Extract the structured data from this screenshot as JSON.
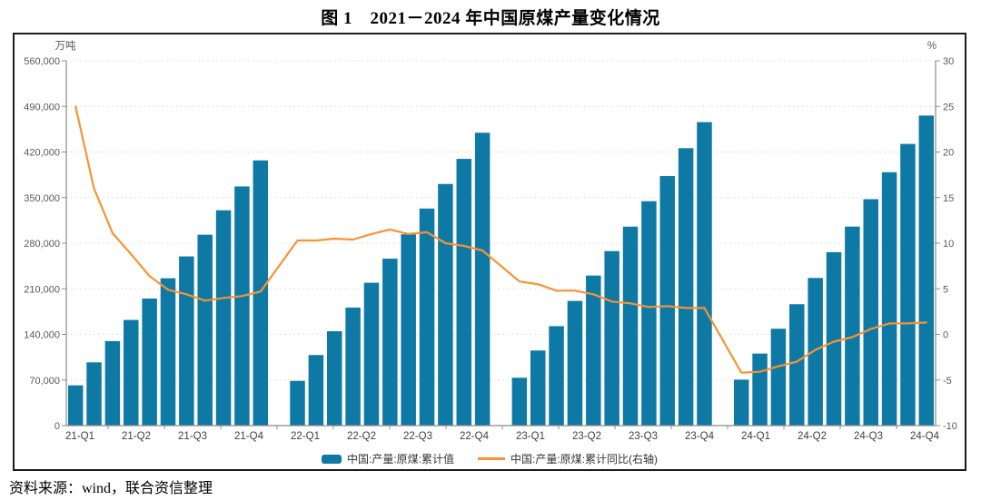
{
  "page": {
    "title": "图 1　2021－2024 年中国原煤产量变化情况",
    "source_note": "资料来源：wind，联合资信整理"
  },
  "legend": {
    "bar_label": "中国:产量:原煤:累计值",
    "line_label": "中国:产量:原煤:累计同比(右轴)"
  },
  "colors": {
    "bar": "#0f79a5",
    "line": "#f79333",
    "grid": "#e0e0e0",
    "axis": "#8c8c8c",
    "tick_text": "#595959",
    "x_label_text": "#404040"
  },
  "chart_data": {
    "type": "bar",
    "combo": "bar+line",
    "title": "图 1　2021－2024 年中国原煤产量变化情况",
    "grid": true,
    "legend_position": "bottom",
    "left_axis": {
      "label": "万吨",
      "min": 0,
      "max": 560000,
      "tick_step": 70000
    },
    "right_axis": {
      "label": "%",
      "min": -10,
      "max": 30,
      "tick_step": 5
    },
    "x_tick_labels": [
      "21-Q1",
      "21-Q2",
      "21-Q3",
      "21-Q4",
      "22-Q1",
      "22-Q2",
      "22-Q3",
      "22-Q4",
      "23-Q1",
      "23-Q2",
      "23-Q3",
      "23-Q4",
      "24-Q1",
      "24-Q2",
      "24-Q3",
      "24-Q4"
    ],
    "categories": [
      "2021-02",
      "2021-03",
      "2021-04",
      "2021-05",
      "2021-06",
      "2021-07",
      "2021-08",
      "2021-09",
      "2021-10",
      "2021-11",
      "2021-12",
      "2022-01",
      "2022-02",
      "2022-03",
      "2022-04",
      "2022-05",
      "2022-06",
      "2022-07",
      "2022-08",
      "2022-09",
      "2022-10",
      "2022-11",
      "2022-12",
      "2023-01",
      "2023-02",
      "2023-03",
      "2023-04",
      "2023-05",
      "2023-06",
      "2023-07",
      "2023-08",
      "2023-09",
      "2023-10",
      "2023-11",
      "2023-12",
      "2024-01",
      "2024-02",
      "2024-03",
      "2024-04",
      "2024-05",
      "2024-06",
      "2024-07",
      "2024-08",
      "2024-09",
      "2024-10",
      "2024-11",
      "2024-12"
    ],
    "series": [
      {
        "name": "中国:产量:原煤:累计值",
        "type": "bar",
        "axis": "left",
        "unit": "万吨",
        "values": [
          61760,
          97056,
          129700,
          162184,
          195000,
          226180,
          259700,
          293000,
          330500,
          367100,
          407100,
          null,
          68660,
          108340,
          144840,
          181170,
          219240,
          256260,
          293640,
          333190,
          370910,
          409420,
          449560,
          null,
          73420,
          115300,
          152650,
          191420,
          230280,
          267870,
          305420,
          344450,
          383040,
          425840,
          465840,
          null,
          70520,
          110560,
          148660,
          186330,
          226620,
          266230,
          305500,
          347570,
          388930,
          432380,
          475940
        ]
      },
      {
        "name": "中国:产量:原煤:累计同比(右轴)",
        "type": "line",
        "axis": "right",
        "unit": "%",
        "values": [
          25.0,
          16.0,
          11.1,
          8.8,
          6.4,
          4.9,
          4.4,
          3.7,
          4.0,
          4.2,
          4.7,
          null,
          10.3,
          10.3,
          10.5,
          10.4,
          11.0,
          11.5,
          11.0,
          11.2,
          10.0,
          9.7,
          9.2,
          null,
          5.8,
          5.5,
          4.8,
          4.8,
          4.4,
          3.6,
          3.4,
          3.0,
          3.1,
          2.9,
          2.9,
          null,
          -4.2,
          -4.1,
          -3.5,
          -3.0,
          -1.7,
          -0.8,
          -0.3,
          0.6,
          1.2,
          1.2,
          1.3
        ]
      }
    ]
  }
}
